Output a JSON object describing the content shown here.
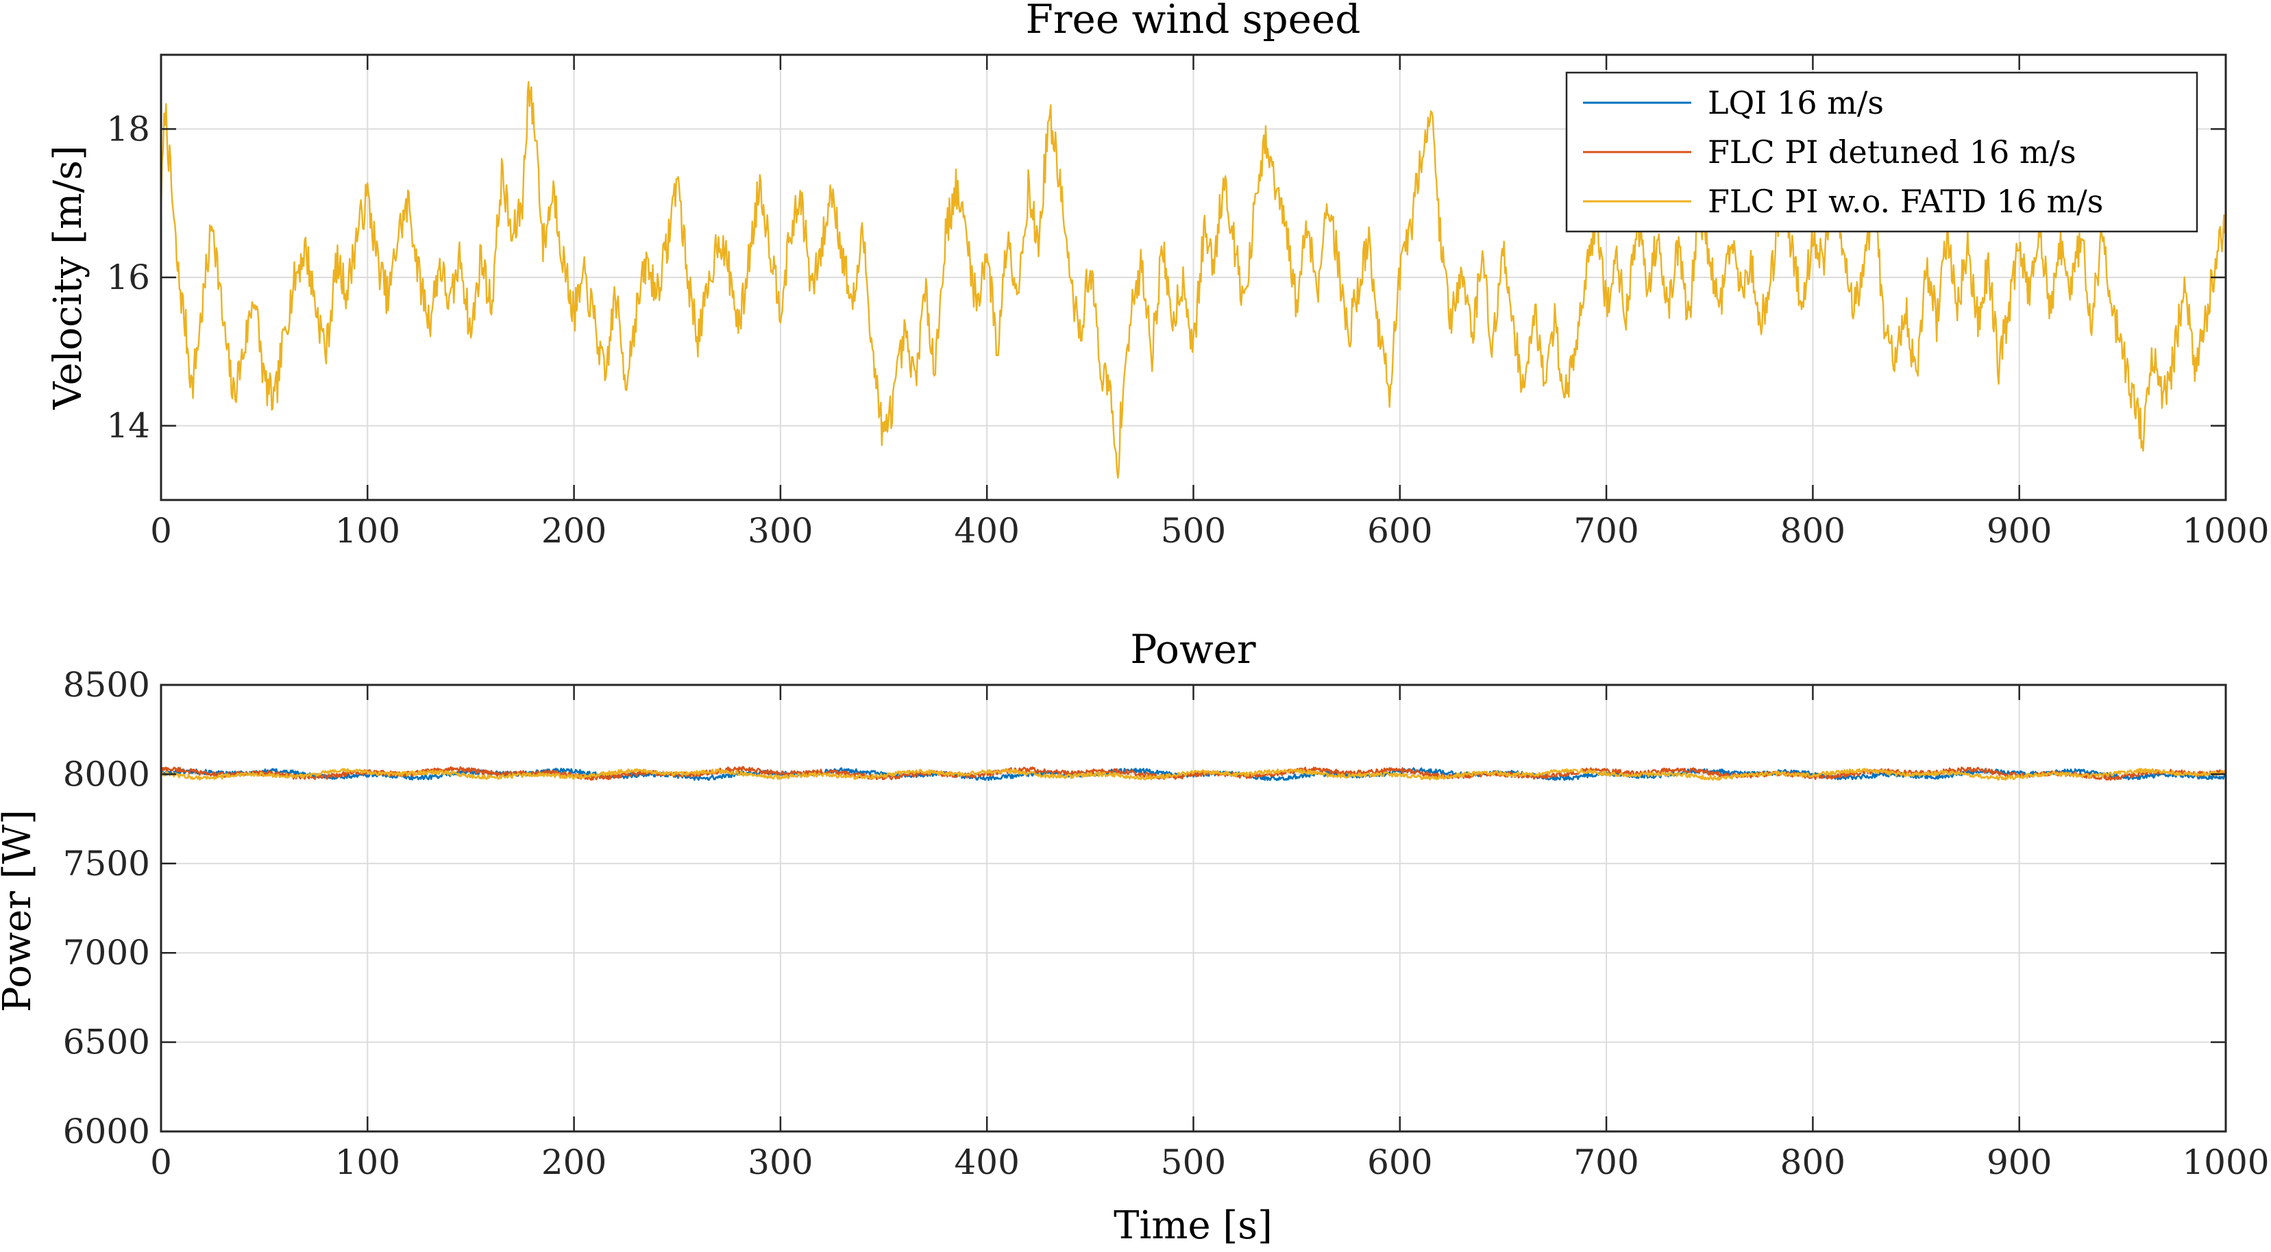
{
  "chart_data": [
    {
      "type": "line",
      "title": "Free wind speed",
      "xlabel": "",
      "ylabel": "Velocity [m/s]",
      "xlim": [
        0,
        1000
      ],
      "ylim": [
        13,
        19
      ],
      "xticks": [
        0,
        100,
        200,
        300,
        400,
        500,
        600,
        700,
        800,
        900,
        1000
      ],
      "yticks": [
        14,
        16,
        18
      ],
      "grid": true,
      "legend": "top-right",
      "series": [
        {
          "name": "LQI 16 m/s",
          "color": "#0072BD",
          "visible_in_plot": false
        },
        {
          "name": "FLC PI detuned 16 m/s",
          "color": "#D95319",
          "visible_in_plot": false
        },
        {
          "name": "FLC PI w.o. FATD 16 m/s",
          "color": "#EDB120",
          "x": [
            0,
            2,
            5,
            8,
            12,
            15,
            20,
            25,
            30,
            35,
            40,
            45,
            50,
            55,
            60,
            65,
            70,
            75,
            80,
            85,
            90,
            95,
            100,
            105,
            110,
            115,
            120,
            125,
            130,
            135,
            140,
            145,
            150,
            155,
            160,
            165,
            170,
            175,
            178,
            182,
            185,
            190,
            195,
            200,
            205,
            210,
            215,
            220,
            225,
            230,
            235,
            240,
            245,
            250,
            255,
            260,
            265,
            270,
            275,
            280,
            285,
            290,
            295,
            300,
            305,
            310,
            315,
            320,
            325,
            330,
            335,
            340,
            345,
            350,
            355,
            360,
            365,
            370,
            375,
            380,
            385,
            390,
            395,
            400,
            405,
            410,
            415,
            420,
            425,
            430,
            435,
            440,
            445,
            450,
            455,
            460,
            463,
            466,
            470,
            475,
            480,
            485,
            490,
            495,
            500,
            505,
            510,
            515,
            520,
            525,
            530,
            535,
            540,
            545,
            550,
            555,
            560,
            565,
            570,
            575,
            580,
            585,
            590,
            595,
            600,
            605,
            610,
            615,
            620,
            625,
            630,
            635,
            640,
            645,
            650,
            655,
            660,
            665,
            670,
            675,
            680,
            685,
            690,
            695,
            700,
            705,
            710,
            715,
            720,
            725,
            730,
            735,
            740,
            745,
            750,
            755,
            760,
            765,
            770,
            775,
            780,
            785,
            790,
            795,
            800,
            805,
            810,
            815,
            820,
            825,
            830,
            835,
            840,
            845,
            850,
            855,
            860,
            865,
            870,
            875,
            880,
            885,
            890,
            895,
            900,
            905,
            910,
            915,
            920,
            925,
            930,
            935,
            940,
            945,
            950,
            955,
            960,
            965,
            970,
            975,
            980,
            985,
            990,
            995,
            1000
          ],
          "y": [
            17.0,
            18.3,
            17.2,
            16.1,
            15.3,
            14.5,
            15.6,
            16.8,
            15.4,
            14.4,
            15.0,
            15.8,
            14.6,
            14.3,
            15.3,
            16.0,
            16.4,
            15.6,
            15.0,
            16.2,
            15.8,
            16.6,
            17.1,
            16.2,
            15.7,
            16.6,
            17.0,
            16.0,
            15.4,
            16.2,
            15.6,
            16.3,
            15.2,
            16.3,
            15.6,
            17.4,
            16.5,
            17.0,
            18.6,
            17.8,
            16.4,
            17.2,
            16.2,
            15.5,
            16.0,
            15.4,
            14.6,
            15.8,
            14.6,
            15.5,
            16.2,
            15.8,
            16.4,
            17.4,
            16.0,
            15.2,
            15.8,
            16.6,
            16.1,
            15.3,
            16.3,
            17.3,
            16.4,
            15.6,
            16.6,
            17.1,
            15.8,
            16.4,
            17.2,
            16.3,
            15.6,
            16.6,
            14.9,
            13.8,
            14.4,
            15.2,
            14.6,
            15.8,
            14.8,
            16.6,
            17.2,
            16.6,
            15.6,
            16.4,
            15.0,
            16.6,
            15.8,
            17.2,
            16.4,
            18.2,
            17.4,
            16.0,
            15.2,
            16.2,
            14.8,
            14.4,
            13.3,
            14.6,
            15.5,
            16.2,
            15.0,
            16.4,
            15.4,
            16.0,
            15.0,
            16.6,
            16.2,
            17.4,
            16.4,
            15.6,
            17.0,
            17.8,
            17.2,
            16.6,
            15.6,
            16.8,
            15.8,
            17.1,
            16.2,
            15.2,
            15.9,
            16.5,
            15.2,
            14.5,
            16.0,
            16.6,
            17.6,
            18.3,
            16.4,
            15.4,
            16.2,
            15.2,
            16.3,
            15.0,
            16.4,
            15.4,
            14.4,
            15.6,
            14.6,
            15.4,
            14.4,
            15.0,
            16.1,
            16.8,
            15.6,
            16.2,
            15.5,
            16.8,
            15.8,
            16.6,
            15.6,
            16.4,
            15.4,
            17.0,
            16.2,
            15.6,
            16.5,
            15.8,
            16.2,
            15.4,
            16.0,
            17.2,
            16.4,
            15.6,
            16.6,
            16.2,
            17.0,
            16.4,
            15.6,
            16.2,
            17.0,
            15.2,
            14.8,
            15.6,
            14.6,
            16.2,
            15.4,
            16.6,
            15.6,
            16.4,
            15.4,
            16.2,
            14.8,
            15.6,
            16.4,
            15.8,
            16.6,
            15.6,
            16.4,
            15.8,
            16.6,
            15.4,
            16.6,
            15.6,
            15.0,
            14.4,
            13.8,
            15.0,
            14.4,
            14.9,
            16.0,
            14.6,
            15.4,
            16.2,
            16.8
          ]
        }
      ]
    },
    {
      "type": "line",
      "title": "Power",
      "xlabel": "Time [s]",
      "ylabel": "Power [W]",
      "xlim": [
        0,
        1000
      ],
      "ylim": [
        6000,
        8500
      ],
      "xticks": [
        0,
        100,
        200,
        300,
        400,
        500,
        600,
        700,
        800,
        900,
        1000
      ],
      "yticks": [
        6000,
        6500,
        7000,
        7500,
        8000,
        8500
      ],
      "grid": true,
      "series": [
        {
          "name": "LQI 16 m/s",
          "color": "#0072BD",
          "mean": 8000,
          "amplitude": 28
        },
        {
          "name": "FLC PI detuned 16 m/s",
          "color": "#D95319",
          "mean": 8005,
          "amplitude": 30
        },
        {
          "name": "FLC PI w.o. FATD 16 m/s",
          "color": "#EDB120",
          "mean": 8000,
          "amplitude": 26
        }
      ]
    }
  ]
}
